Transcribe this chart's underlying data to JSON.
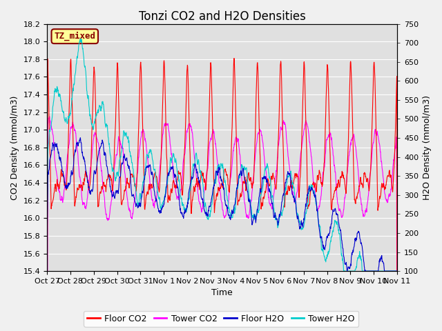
{
  "title": "Tonzi CO2 and H2O Densities",
  "xlabel": "Time",
  "ylabel_left": "CO2 Density (mmol/m3)",
  "ylabel_right": "H2O Density (mmol/m3)",
  "co2_ylim": [
    15.4,
    18.2
  ],
  "h2o_ylim": [
    100,
    750
  ],
  "co2_yticks": [
    15.4,
    15.6,
    15.8,
    16.0,
    16.2,
    16.4,
    16.6,
    16.8,
    17.0,
    17.2,
    17.4,
    17.6,
    17.8,
    18.0,
    18.2
  ],
  "h2o_yticks": [
    100,
    150,
    200,
    250,
    300,
    350,
    400,
    450,
    500,
    550,
    600,
    650,
    700,
    750
  ],
  "xtick_labels": [
    "Oct 27",
    "Oct 28",
    "Oct 29",
    "Oct 30",
    "Oct 31",
    "Nov 1",
    "Nov 2",
    "Nov 3",
    "Nov 4",
    "Nov 5",
    "Nov 6",
    "Nov 7",
    "Nov 8",
    "Nov 9",
    "Nov 10",
    "Nov 11"
  ],
  "annotation_text": "TZ_mixed",
  "annotation_color": "#880000",
  "annotation_bg": "#ffff99",
  "floor_co2_color": "#ff0000",
  "tower_co2_color": "#ff00ff",
  "floor_h2o_color": "#0000cc",
  "tower_h2o_color": "#00cccc",
  "plot_bg_color": "#e0e0e0",
  "fig_bg_color": "#f0f0f0",
  "grid_color": "#ffffff",
  "title_fontsize": 12,
  "axis_fontsize": 9,
  "tick_fontsize": 8,
  "legend_fontsize": 9
}
